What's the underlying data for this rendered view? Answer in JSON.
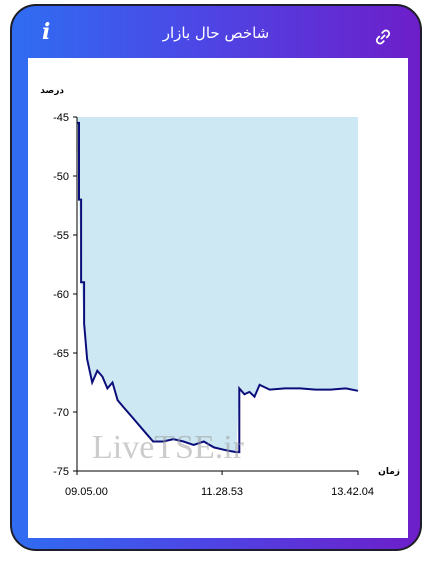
{
  "header": {
    "title": "شاخص حال بازار",
    "info_icon": "info-icon",
    "link_icon": "link-icon"
  },
  "colors": {
    "gradient_start": "#2f6df2",
    "gradient_end": "#6d1ec9",
    "area_fill": "#cde8f2",
    "line": "#0b0e7a"
  },
  "watermark": "LiveTSE.ir",
  "chart_data": {
    "type": "area",
    "ylabel": "درصد",
    "xlabel": "زمان",
    "ylim": [
      -75,
      -45
    ],
    "yticks": [
      "-45",
      "-50",
      "-55",
      "-60",
      "-65",
      "-70",
      "-75"
    ],
    "xticks": [
      "09.05.00",
      "11.28.53",
      "13.42.04"
    ],
    "x": [
      "09.05",
      "09.07",
      "09.09",
      "09.12",
      "09.15",
      "09.20",
      "09.25",
      "09.30",
      "09.35",
      "09.40",
      "09.45",
      "09.50",
      "10.00",
      "10.10",
      "10.20",
      "10.30",
      "10.40",
      "10.50",
      "11.00",
      "11.10",
      "11.20",
      "11.30",
      "11.35",
      "11.42",
      "11.45",
      "11.50",
      "11.55",
      "12.00",
      "12.05",
      "12.15",
      "12.30",
      "12.45",
      "13.00",
      "13.15",
      "13.30",
      "13.42"
    ],
    "series": [
      {
        "values": [
          -45.5,
          -52,
          -59,
          -62.5,
          -65.5,
          -67.5,
          -66.5,
          -67,
          -68,
          -67.5,
          -69,
          -69.5,
          -70.5,
          -71.5,
          -72.5,
          -72.5,
          -72.3,
          -72.5,
          -72.8,
          -72.5,
          -73,
          -73.2,
          -73.3,
          -73.4,
          -68,
          -68.5,
          -68.3,
          -68.7,
          -67.7,
          -68.1,
          -68,
          -68,
          -68.1,
          -68.1,
          -68,
          -68.2
        ]
      }
    ]
  }
}
